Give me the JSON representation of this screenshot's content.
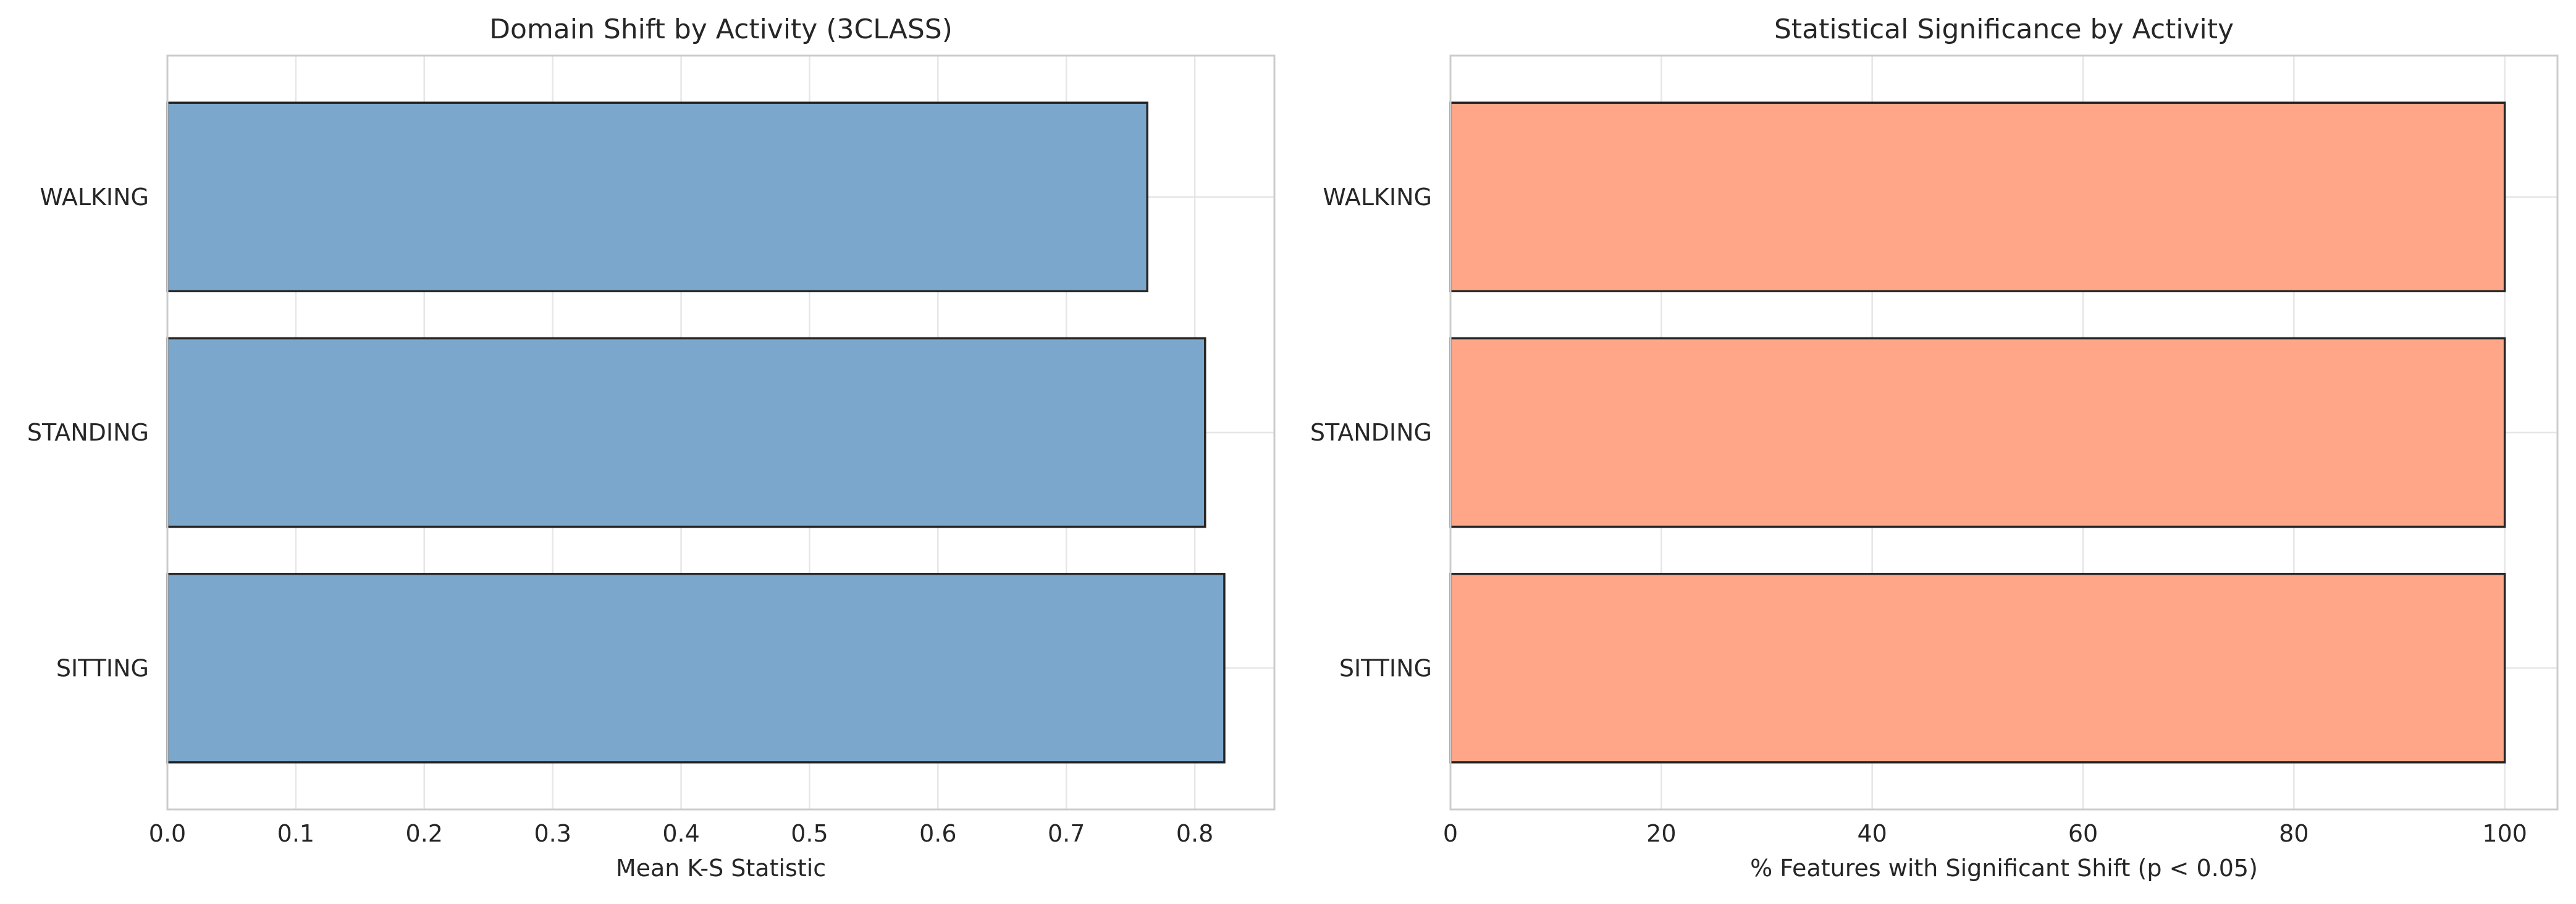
{
  "chart_data": [
    {
      "type": "bar",
      "orientation": "horizontal",
      "title": "Domain Shift by Activity (3CLASS)",
      "xlabel": "Mean K-S Statistic",
      "ylabel": "",
      "categories": [
        "WALKING",
        "STANDING",
        "SITTING"
      ],
      "values": [
        0.763,
        0.808,
        0.823
      ],
      "xlim": [
        0,
        0.862
      ],
      "xticks": [
        0.0,
        0.1,
        0.2,
        0.3,
        0.4,
        0.5,
        0.6,
        0.7,
        0.8
      ],
      "xtick_labels": [
        "0.0",
        "0.1",
        "0.2",
        "0.3",
        "0.4",
        "0.5",
        "0.6",
        "0.7",
        "0.8"
      ],
      "bar_color": "#7ba7cc",
      "edge_color": "#262626",
      "grid": true,
      "legend": "none"
    },
    {
      "type": "bar",
      "orientation": "horizontal",
      "title": "Statistical Significance by Activity",
      "xlabel": "% Features with Significant Shift (p < 0.05)",
      "ylabel": "",
      "categories": [
        "WALKING",
        "STANDING",
        "SITTING"
      ],
      "values": [
        100,
        100,
        100
      ],
      "xlim": [
        0,
        105
      ],
      "xticks": [
        0,
        20,
        40,
        60,
        80,
        100
      ],
      "xtick_labels": [
        "0",
        "20",
        "40",
        "60",
        "80",
        "100"
      ],
      "bar_color": "#ffa688",
      "edge_color": "#262626",
      "grid": true,
      "legend": "none"
    }
  ]
}
